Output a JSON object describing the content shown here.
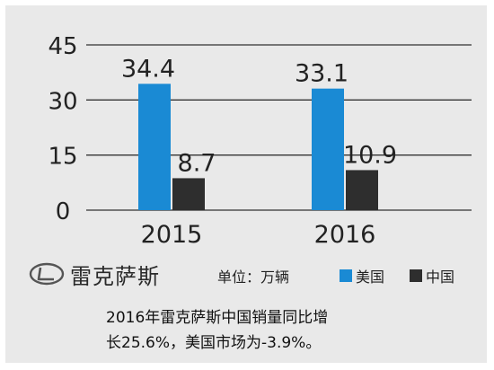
{
  "chart_data": {
    "type": "bar",
    "categories": [
      "2015",
      "2016"
    ],
    "series": [
      {
        "name": "美国",
        "values": [
          34.4,
          33.1
        ],
        "labels": [
          "34.4",
          "33.1"
        ],
        "color": "#1a8ad4"
      },
      {
        "name": "中国",
        "values": [
          8.7,
          10.9
        ],
        "labels": [
          "8.7",
          "10.9"
        ],
        "color": "#2e2e2e"
      }
    ],
    "ylim": [
      0,
      45
    ],
    "yticks": [
      "0",
      "15",
      "30",
      "45"
    ],
    "grid": true,
    "unit_label": "单位：万辆",
    "legend_position": "bottom"
  },
  "brand": {
    "name": "雷克萨斯",
    "logo_icon": "lexus-logo"
  },
  "caption": {
    "line1": "2016年雷克萨斯中国销量同比增",
    "line2": "长25.6%，美国市场为-3.9%。"
  },
  "colors": {
    "background": "#e9e9e9",
    "gridline": "#333333"
  }
}
